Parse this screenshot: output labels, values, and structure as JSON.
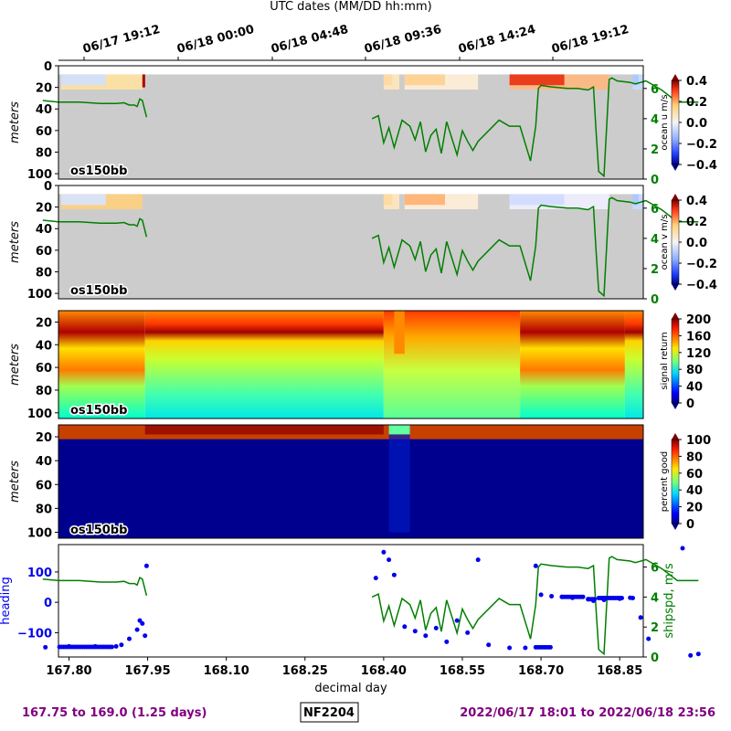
{
  "header": {
    "top_axis_title": "UTC dates (MM/DD hh:mm)",
    "utc_ticks": [
      "06/17 19:12",
      "06/18 00:00",
      "06/18 04:48",
      "06/18 09:36",
      "06/18 14:24",
      "06/18 19:12"
    ]
  },
  "footer": {
    "left": "167.75 to 169.0 (1.25 days)",
    "center": "NF2204",
    "right": "2022/06/17 18:01 to 2022/06/18 23:56"
  },
  "colors": {
    "accent_purple": "#800080",
    "ship_speed_green": "#007f00",
    "heading_blue": "#0000ee",
    "no_data_gray": "#cccccc"
  },
  "chart_data": [
    {
      "type": "heatmap",
      "instrument": "os150bb",
      "ylabel": "meters",
      "ylim": [
        105,
        0
      ],
      "yticks": [
        "0",
        "20",
        "40",
        "60",
        "80",
        "100"
      ],
      "colorbar_label": "ocean u m/s",
      "colorbar_ticks": [
        "0.4",
        "0.2",
        "0.0",
        "−0.2",
        "−0.4"
      ],
      "colorbar_range": [
        -0.4,
        0.4
      ],
      "right_axis_ticks": [
        "6",
        "4",
        "2",
        "0"
      ],
      "right_axis_range": [
        0,
        7.5
      ],
      "overlay": "ship speed"
    },
    {
      "type": "heatmap",
      "instrument": "os150bb",
      "ylabel": "meters",
      "ylim": [
        105,
        0
      ],
      "yticks": [
        "0",
        "20",
        "40",
        "60",
        "80",
        "100"
      ],
      "colorbar_label": "ocean v m/s",
      "colorbar_ticks": [
        "0.4",
        "0.2",
        "0.0",
        "−0.2",
        "−0.4"
      ],
      "colorbar_range": [
        -0.4,
        0.4
      ],
      "right_axis_ticks": [
        "6",
        "4",
        "2",
        "0"
      ],
      "right_axis_range": [
        0,
        7.5
      ],
      "overlay": "ship speed"
    },
    {
      "type": "heatmap",
      "instrument": "os150bb",
      "ylabel": "meters",
      "ylim": [
        105,
        10
      ],
      "yticks": [
        "20",
        "40",
        "60",
        "80",
        "100"
      ],
      "colorbar_label": "signal return",
      "colorbar_ticks": [
        "200",
        "160",
        "120",
        "80",
        "40",
        "0"
      ],
      "colorbar_range": [
        0,
        200
      ]
    },
    {
      "type": "heatmap",
      "instrument": "os150bb",
      "ylabel": "meters",
      "ylim": [
        105,
        10
      ],
      "yticks": [
        "20",
        "40",
        "60",
        "80",
        "100"
      ],
      "colorbar_label": "percent good",
      "colorbar_ticks": [
        "100",
        "80",
        "60",
        "40",
        "20",
        "0"
      ],
      "colorbar_range": [
        0,
        100
      ]
    },
    {
      "type": "line",
      "xlabel": "decimal day",
      "xlim": [
        167.75,
        169.0
      ],
      "xticks": [
        "167.80",
        "167.95",
        "168.10",
        "168.25",
        "168.40",
        "168.55",
        "168.70",
        "168.85"
      ],
      "ylabel": "heading",
      "ylim": [
        -180,
        190
      ],
      "yticks": [
        "100",
        "0",
        "−100"
      ],
      "right_ylabel": "shipspd, m/s",
      "right_ylim": [
        0,
        7.5
      ],
      "right_yticks": [
        "6",
        "4",
        "2",
        "0"
      ],
      "series": [
        {
          "name": "shipspd, m/s",
          "x": [
            167.75,
            167.78,
            167.82,
            167.86,
            167.89,
            167.905,
            167.915,
            167.925,
            167.93,
            167.935,
            167.94,
            167.945,
            167.948,
            168.378,
            168.39,
            168.4,
            168.41,
            168.42,
            168.435,
            168.45,
            168.46,
            168.47,
            168.48,
            168.49,
            168.5,
            168.51,
            168.52,
            168.53,
            168.54,
            168.55,
            168.56,
            168.57,
            168.58,
            168.62,
            168.63,
            168.64,
            168.66,
            168.68,
            168.69,
            168.695,
            168.7,
            168.72,
            168.75,
            168.77,
            168.79,
            168.8,
            168.805,
            168.81,
            168.82,
            168.83,
            168.835,
            168.845,
            168.87,
            168.88,
            168.9,
            168.93,
            168.96,
            168.98,
            169.0
          ],
          "y": [
            5.2,
            5.1,
            5.1,
            5.0,
            5.0,
            5.05,
            4.9,
            4.9,
            4.8,
            5.3,
            5.2,
            4.5,
            4.1,
            4.0,
            4.2,
            2.4,
            3.4,
            2.1,
            3.9,
            3.5,
            2.6,
            3.8,
            1.8,
            2.9,
            3.3,
            1.7,
            3.8,
            2.7,
            1.6,
            3.2,
            2.5,
            1.9,
            2.5,
            3.9,
            3.7,
            3.5,
            3.5,
            1.2,
            3.5,
            6.0,
            6.2,
            6.1,
            6.0,
            6.0,
            5.9,
            6.1,
            3.2,
            0.5,
            0.2,
            6.6,
            6.7,
            6.5,
            6.4,
            6.3,
            6.5,
            5.9,
            5.1,
            5.1,
            5.1
          ]
        },
        {
          "name": "heading",
          "x": [
            167.755,
            167.8,
            167.85,
            167.89,
            167.9,
            167.915,
            167.93,
            167.935,
            167.94,
            167.945,
            167.948,
            168.385,
            168.4,
            168.41,
            168.42,
            168.44,
            168.46,
            168.48,
            168.5,
            168.52,
            168.54,
            168.56,
            168.58,
            168.6,
            168.64,
            168.67,
            168.69,
            168.7,
            168.72,
            168.74,
            168.76,
            168.79,
            168.8,
            168.82,
            168.85,
            168.87,
            168.875,
            168.89,
            168.905,
            168.97,
            168.985,
            169.0
          ],
          "y": [
            -148,
            -145,
            -145,
            -145,
            -140,
            -120,
            -90,
            -60,
            -70,
            -110,
            120,
            80,
            165,
            140,
            90,
            -80,
            -95,
            -110,
            -85,
            -130,
            -60,
            -100,
            140,
            -140,
            -150,
            -150,
            120,
            25,
            20,
            18,
            15,
            10,
            5,
            8,
            12,
            15,
            14,
            -50,
            -120,
            178,
            -175,
            -170
          ]
        }
      ]
    }
  ]
}
